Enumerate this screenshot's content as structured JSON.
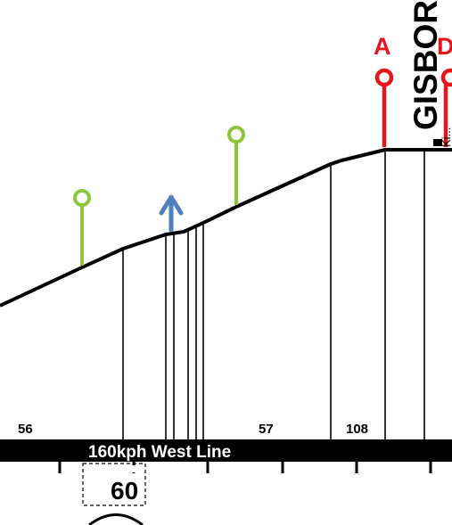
{
  "colors": {
    "track": "#000000",
    "band": "#000000",
    "band_text": "#ffffff",
    "signal_red": "#e8141c",
    "marker_green": "#8cc63f",
    "arrow_blue": "#4f7fbd"
  },
  "line_name": "160kph West Line",
  "speed_limit": "60",
  "station": {
    "name": "GISBOR",
    "subtitle": "Ki..."
  },
  "km_labels": [
    "56",
    "57",
    "108"
  ],
  "signals": [
    {
      "label": "A",
      "color": "red"
    },
    {
      "label": "D",
      "color": "red"
    }
  ],
  "markers": [
    {
      "type": "green-pin-icon"
    },
    {
      "type": "green-pin-icon"
    },
    {
      "type": "blue-up-arrow-icon"
    }
  ]
}
